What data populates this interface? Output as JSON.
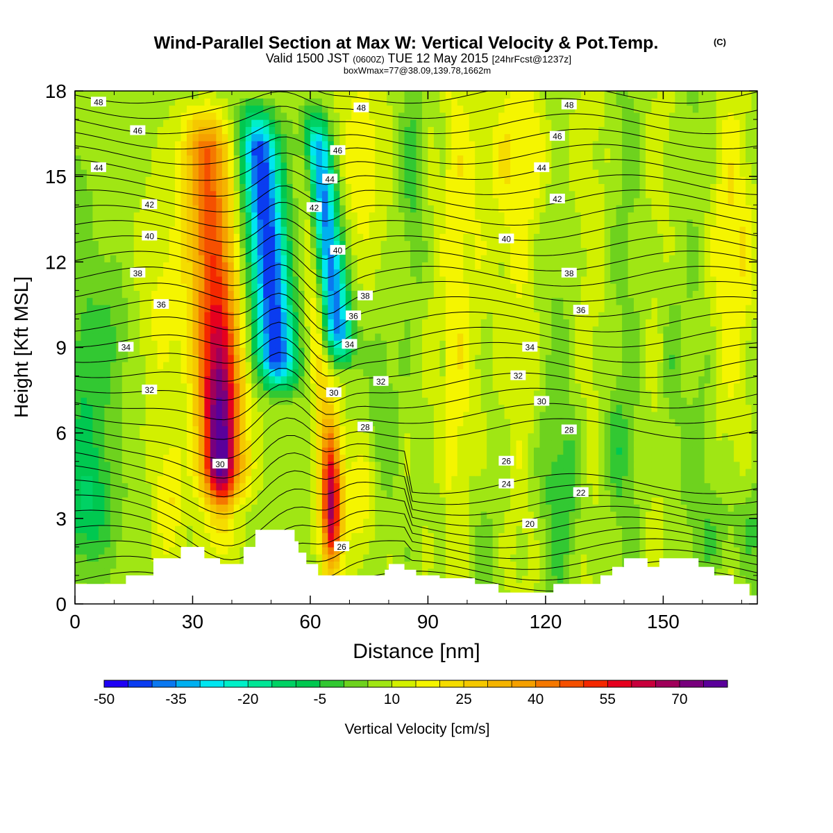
{
  "title": "Wind-Parallel Section at Max W: Vertical Velocity & Pot.Temp.",
  "title_mark": "(C)",
  "subtitle": {
    "part1": "Valid 1500 JST",
    "part2": "(0600Z)",
    "part3": "TUE 12 May 2015",
    "part4": "[24hrFcst@1237z]"
  },
  "subtitle2": "boxWmax=77@38.09,139.78,1662m",
  "chart_data": {
    "type": "heatmap",
    "xlabel": "Distance [nm]",
    "ylabel": "Height [Kft MSL]",
    "xlim": [
      0,
      174
    ],
    "ylim": [
      0,
      18
    ],
    "xticks": [
      "0",
      "30",
      "60",
      "90",
      "120",
      "150"
    ],
    "yticks": [
      "0",
      "3",
      "6",
      "9",
      "12",
      "15",
      "18"
    ],
    "fill_variable": "Vertical Velocity [cm/s]",
    "contour_variable": "Potential temperature",
    "colorbar": {
      "label": "Vertical Velocity [cm/s]",
      "tick_labels": [
        "-50",
        "-35",
        "-20",
        "-5",
        "10",
        "25",
        "40",
        "55",
        "70"
      ],
      "levels": [
        -50,
        -45,
        -40,
        -35,
        -30,
        -25,
        -20,
        -15,
        -10,
        -5,
        0,
        5,
        10,
        15,
        20,
        25,
        30,
        35,
        40,
        45,
        50,
        55,
        60,
        65,
        70,
        75
      ],
      "colors": [
        "#1e00f5",
        "#0a3cf0",
        "#0a78f0",
        "#00b0f0",
        "#00e6f0",
        "#00f0c8",
        "#00e696",
        "#00d264",
        "#00c850",
        "#32c832",
        "#6ed21e",
        "#a0e614",
        "#d2f000",
        "#f5f500",
        "#f5dc00",
        "#f5c800",
        "#f5b400",
        "#f5a000",
        "#f57800",
        "#f55000",
        "#f52800",
        "#e6001e",
        "#c8003c",
        "#a0005a",
        "#78007d",
        "#5a009a"
      ]
    },
    "features": [
      {
        "name": "updraft",
        "x": 37,
        "y": 7.5,
        "max_w": 77
      },
      {
        "name": "downdraft",
        "x": 51,
        "y": 12,
        "min_w": -48
      },
      {
        "name": "downdraft",
        "x": 67,
        "y": 10.5,
        "min_w": -40
      },
      {
        "name": "updraft",
        "x": 65,
        "y": 3.5,
        "max_w": 55
      }
    ],
    "terrain_kft": [
      [
        0,
        0.7
      ],
      [
        12,
        0.7
      ],
      [
        13,
        1.0
      ],
      [
        19,
        1.0
      ],
      [
        20,
        1.6
      ],
      [
        26,
        1.6
      ],
      [
        27,
        2.0
      ],
      [
        32,
        2.0
      ],
      [
        33,
        1.6
      ],
      [
        36,
        1.6
      ],
      [
        37,
        1.4
      ],
      [
        42,
        1.4
      ],
      [
        43,
        2.0
      ],
      [
        45,
        2.0
      ],
      [
        46,
        2.6
      ],
      [
        55,
        2.6
      ],
      [
        56,
        2.2
      ],
      [
        57,
        1.8
      ],
      [
        59,
        1.4
      ],
      [
        62,
        1.0
      ],
      [
        63,
        1.0
      ],
      [
        64,
        1.0
      ],
      [
        65,
        1.0
      ],
      [
        66,
        1.0
      ],
      [
        67,
        1.0
      ],
      [
        68,
        1.0
      ],
      [
        69,
        1.0
      ],
      [
        78,
        1.0
      ],
      [
        79,
        1.2
      ],
      [
        80,
        1.4
      ],
      [
        83,
        1.4
      ],
      [
        84,
        1.2
      ],
      [
        87,
        1.0
      ],
      [
        92,
        1.0
      ],
      [
        93,
        0.9
      ],
      [
        101,
        0.9
      ],
      [
        102,
        0.7
      ],
      [
        107,
        0.7
      ],
      [
        108,
        0.4
      ],
      [
        121,
        0.4
      ],
      [
        122,
        0.7
      ],
      [
        133,
        0.7
      ],
      [
        134,
        1.0
      ],
      [
        136,
        1.0
      ],
      [
        137,
        1.3
      ],
      [
        139,
        1.3
      ],
      [
        140,
        1.6
      ],
      [
        145,
        1.6
      ],
      [
        146,
        1.3
      ],
      [
        148,
        1.3
      ],
      [
        149,
        1.6
      ],
      [
        158,
        1.6
      ],
      [
        159,
        1.3
      ],
      [
        162,
        1.3
      ],
      [
        163,
        1.0
      ],
      [
        167,
        1.0
      ],
      [
        168,
        0.7
      ],
      [
        171,
        0.7
      ],
      [
        172,
        0.3
      ],
      [
        174,
        0.3
      ]
    ],
    "theta_labels": [
      {
        "text": "48",
        "x": 6,
        "y": 17.6
      },
      {
        "text": "46",
        "x": 16,
        "y": 16.6
      },
      {
        "text": "44",
        "x": 6,
        "y": 15.3
      },
      {
        "text": "42",
        "x": 19,
        "y": 14.0
      },
      {
        "text": "40",
        "x": 19,
        "y": 12.9
      },
      {
        "text": "38",
        "x": 16,
        "y": 11.6
      },
      {
        "text": "36",
        "x": 22,
        "y": 10.5
      },
      {
        "text": "34",
        "x": 13,
        "y": 9.0
      },
      {
        "text": "32",
        "x": 19,
        "y": 7.5
      },
      {
        "text": "48",
        "x": 73,
        "y": 17.4
      },
      {
        "text": "46",
        "x": 67,
        "y": 15.9
      },
      {
        "text": "44",
        "x": 65,
        "y": 14.9
      },
      {
        "text": "42",
        "x": 61,
        "y": 13.9
      },
      {
        "text": "40",
        "x": 67,
        "y": 12.4
      },
      {
        "text": "38",
        "x": 74,
        "y": 10.8
      },
      {
        "text": "36",
        "x": 71,
        "y": 10.1
      },
      {
        "text": "34",
        "x": 70,
        "y": 9.1
      },
      {
        "text": "32",
        "x": 78,
        "y": 7.8
      },
      {
        "text": "30",
        "x": 66,
        "y": 7.4
      },
      {
        "text": "28",
        "x": 74,
        "y": 6.2
      },
      {
        "text": "30",
        "x": 37,
        "y": 4.9
      },
      {
        "text": "26",
        "x": 68,
        "y": 2.0
      },
      {
        "text": "48",
        "x": 126,
        "y": 17.5
      },
      {
        "text": "46",
        "x": 123,
        "y": 16.4
      },
      {
        "text": "44",
        "x": 119,
        "y": 15.3
      },
      {
        "text": "42",
        "x": 123,
        "y": 14.2
      },
      {
        "text": "40",
        "x": 110,
        "y": 12.8
      },
      {
        "text": "38",
        "x": 126,
        "y": 11.6
      },
      {
        "text": "36",
        "x": 129,
        "y": 10.3
      },
      {
        "text": "34",
        "x": 116,
        "y": 9.0
      },
      {
        "text": "32",
        "x": 113,
        "y": 8.0
      },
      {
        "text": "30",
        "x": 119,
        "y": 7.1
      },
      {
        "text": "28",
        "x": 126,
        "y": 6.1
      },
      {
        "text": "26",
        "x": 110,
        "y": 5.0
      },
      {
        "text": "24",
        "x": 110,
        "y": 4.2
      },
      {
        "text": "22",
        "x": 129,
        "y": 3.9
      },
      {
        "text": "20",
        "x": 116,
        "y": 2.8
      }
    ]
  }
}
